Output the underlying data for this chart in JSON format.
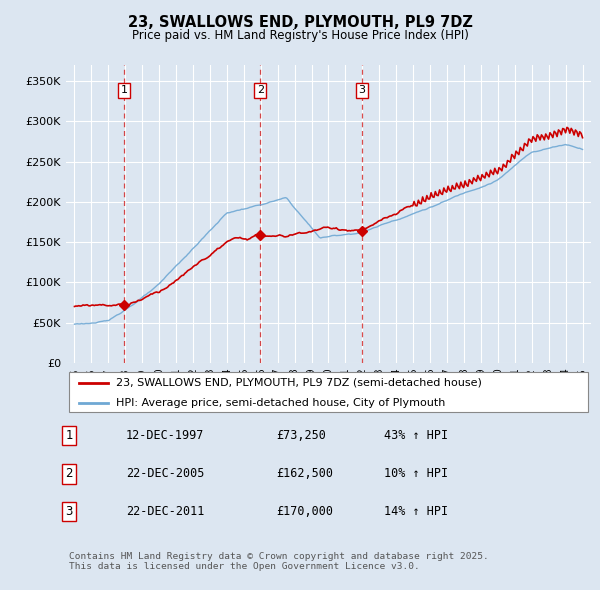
{
  "title": "23, SWALLOWS END, PLYMOUTH, PL9 7DZ",
  "subtitle": "Price paid vs. HM Land Registry's House Price Index (HPI)",
  "legend_label_red": "23, SWALLOWS END, PLYMOUTH, PL9 7DZ (semi-detached house)",
  "legend_label_blue": "HPI: Average price, semi-detached house, City of Plymouth",
  "footer_line1": "Contains HM Land Registry data © Crown copyright and database right 2025.",
  "footer_line2": "This data is licensed under the Open Government Licence v3.0.",
  "transactions": [
    {
      "label": "1",
      "date": "12-DEC-1997",
      "price": 73250,
      "hpi_pct": "43% ↑ HPI",
      "x_year": 1997.95
    },
    {
      "label": "2",
      "date": "22-DEC-2005",
      "price": 162500,
      "hpi_pct": "10% ↑ HPI",
      "x_year": 2005.97
    },
    {
      "label": "3",
      "date": "22-DEC-2011",
      "price": 170000,
      "hpi_pct": "14% ↑ HPI",
      "x_year": 2011.97
    }
  ],
  "ylim": [
    0,
    370000
  ],
  "xlim": [
    1994.5,
    2025.5
  ],
  "yticks": [
    0,
    50000,
    100000,
    150000,
    200000,
    250000,
    300000,
    350000
  ],
  "ytick_labels": [
    "£0",
    "£50K",
    "£100K",
    "£150K",
    "£200K",
    "£250K",
    "£300K",
    "£350K"
  ],
  "xticks": [
    1995,
    1996,
    1997,
    1998,
    1999,
    2000,
    2001,
    2002,
    2003,
    2004,
    2005,
    2006,
    2007,
    2008,
    2009,
    2010,
    2011,
    2012,
    2013,
    2014,
    2015,
    2016,
    2017,
    2018,
    2019,
    2020,
    2021,
    2022,
    2023,
    2024,
    2025
  ],
  "background_color": "#dce6f1",
  "plot_bg_color": "#dce6f1",
  "red_color": "#cc0000",
  "blue_color": "#6fa8d4",
  "transaction_box_edge": "#cc0000",
  "grid_color": "#ffffff",
  "dashed_color": "#cc0000",
  "figwidth": 6.0,
  "figheight": 5.9,
  "dpi": 100
}
